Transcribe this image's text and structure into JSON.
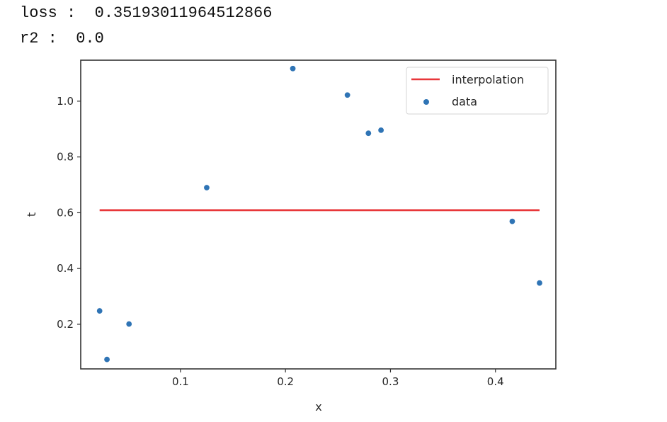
{
  "output": {
    "loss_line": "loss :  0.35193011964512866",
    "r2_line": "r2 :  0.0"
  },
  "chart_data": {
    "type": "scatter",
    "title": "",
    "xlabel": "x",
    "ylabel": "t",
    "xlim": [
      0.005,
      0.4575
    ],
    "ylim": [
      0.04,
      1.147
    ],
    "xticks": [
      0.1,
      0.2,
      0.3,
      0.4
    ],
    "xtick_labels": [
      "0.1",
      "0.2",
      "0.3",
      "0.4"
    ],
    "yticks": [
      0.2,
      0.4,
      0.6,
      0.8,
      1.0
    ],
    "ytick_labels": [
      "0.2",
      "0.4",
      "0.6",
      "0.8",
      "1.0"
    ],
    "grid": false,
    "legend_position": "upper right",
    "series": [
      {
        "name": "interpolation",
        "type": "line",
        "color": "#e8373a",
        "x": [
          0.023,
          0.442
        ],
        "y": [
          0.609,
          0.609
        ]
      },
      {
        "name": "data",
        "type": "scatter",
        "color": "#2f74b5",
        "x": [
          0.023,
          0.03,
          0.051,
          0.125,
          0.207,
          0.259,
          0.279,
          0.291,
          0.416,
          0.442
        ],
        "y": [
          0.248,
          0.074,
          0.201,
          0.69,
          1.117,
          1.022,
          0.885,
          0.896,
          0.569,
          0.348
        ]
      }
    ]
  }
}
